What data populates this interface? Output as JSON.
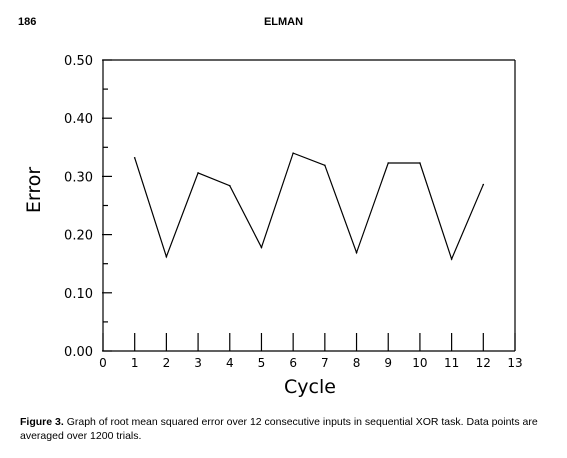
{
  "header": {
    "page_number": "186",
    "running_title": "ELMAN"
  },
  "chart_data": {
    "type": "line",
    "xlabel": "Cycle",
    "ylabel": "Error",
    "xlim": [
      0,
      13
    ],
    "ylim": [
      0.0,
      0.5
    ],
    "x_ticks": [
      0,
      1,
      2,
      3,
      4,
      5,
      6,
      7,
      8,
      9,
      10,
      11,
      12,
      13
    ],
    "y_ticks": [
      "0.00",
      "0.10",
      "0.20",
      "0.30",
      "0.40",
      "0.50"
    ],
    "grid": false,
    "x": [
      1,
      2,
      3,
      4,
      5,
      6,
      7,
      8,
      9,
      10,
      11,
      12
    ],
    "values": [
      0.332,
      0.162,
      0.306,
      0.284,
      0.178,
      0.34,
      0.319,
      0.169,
      0.323,
      0.323,
      0.158,
      0.286
    ]
  },
  "caption": {
    "label": "Figure 3.",
    "text": "Graph of root mean squared error over 12 consecutive inputs in sequential XOR task. Data points are averaged over 1200 trials."
  }
}
